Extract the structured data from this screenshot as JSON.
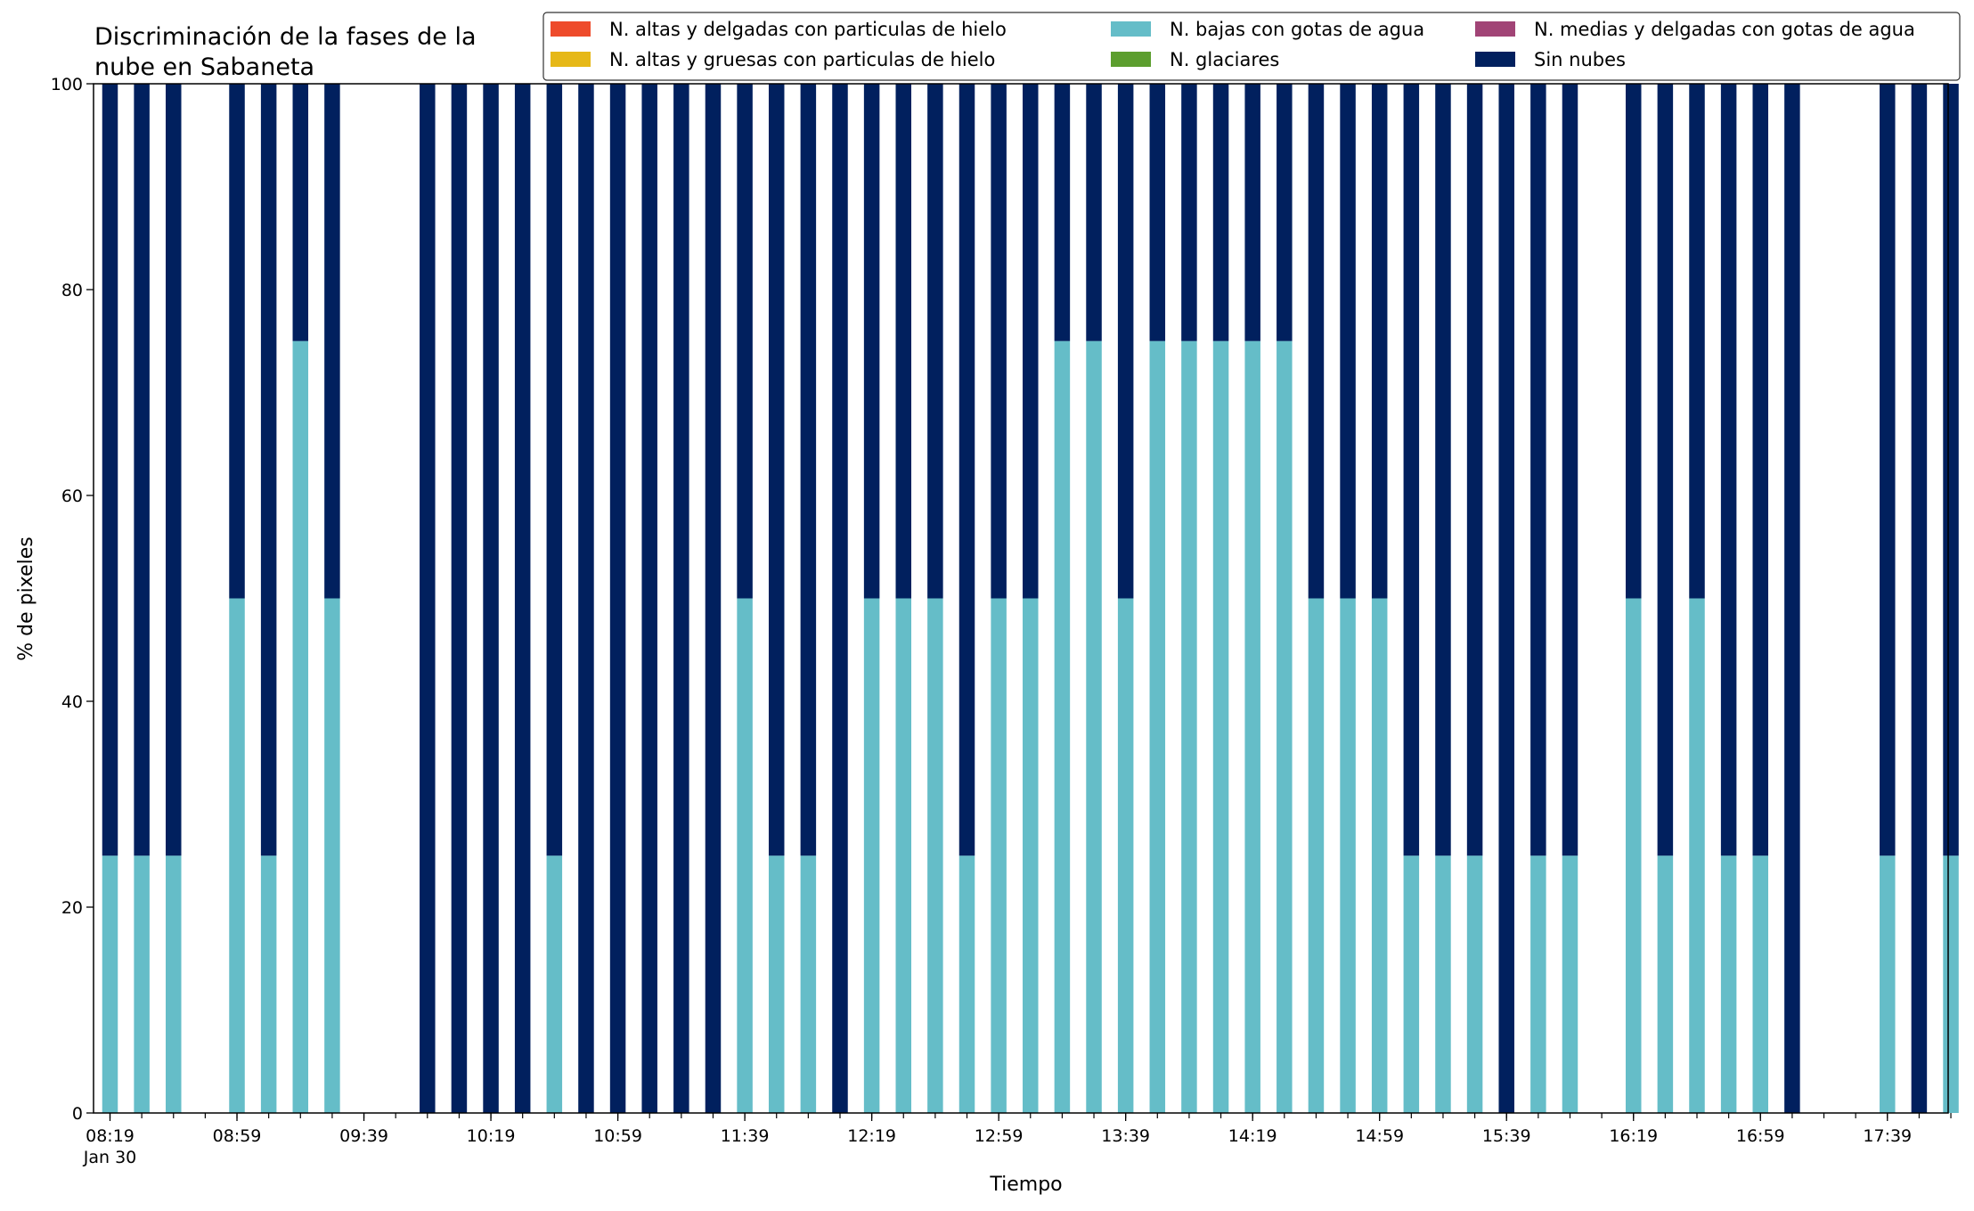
{
  "chart_data": {
    "type": "bar",
    "stacked": true,
    "title_lines": [
      "Discriminación de la fases de la",
      "nube en Sabaneta"
    ],
    "xlabel": "Tiempo",
    "ylabel": "% de pixeles",
    "ylim": [
      0,
      100
    ],
    "yticks": [
      0,
      20,
      40,
      60,
      80,
      100
    ],
    "grid": false,
    "legend_position": "top-right",
    "x_slot_start": "08:19",
    "x_slot_step_minutes": 10,
    "x_slot_count": 59,
    "xtick_labels": [
      "08:19",
      "08:59",
      "09:39",
      "10:19",
      "10:59",
      "11:39",
      "12:19",
      "12:59",
      "13:39",
      "14:19",
      "14:59",
      "15:39",
      "16:19",
      "16:59",
      "17:39"
    ],
    "xtick_sublabel": "Jan 30",
    "categories": [
      "08:19",
      "08:29",
      "08:39",
      "08:49",
      "08:59",
      "09:09",
      "09:19",
      "09:29",
      "09:39",
      "09:49",
      "09:59",
      "10:09",
      "10:19",
      "10:29",
      "10:39",
      "10:49",
      "10:59",
      "11:09",
      "11:19",
      "11:29",
      "11:39",
      "11:49",
      "11:59",
      "12:09",
      "12:19",
      "12:29",
      "12:39",
      "12:49",
      "12:59",
      "13:09",
      "13:19",
      "13:29",
      "13:39",
      "13:49",
      "13:59",
      "14:09",
      "14:19",
      "14:29",
      "14:39",
      "14:49",
      "14:59",
      "15:09",
      "15:19",
      "15:29",
      "15:39",
      "15:49",
      "15:59",
      "16:09",
      "16:19",
      "16:29",
      "16:39",
      "16:49",
      "16:59",
      "17:09",
      "17:19",
      "17:29",
      "17:39",
      "17:49",
      "17:59"
    ],
    "series": [
      {
        "name": "N. altas y delgadas con particulas de hielo",
        "color": "#ee4b2b",
        "values": [
          0,
          0,
          0,
          null,
          0,
          0,
          0,
          0,
          null,
          null,
          0,
          0,
          0,
          0,
          0,
          0,
          0,
          0,
          0,
          0,
          0,
          0,
          0,
          0,
          0,
          0,
          0,
          0,
          0,
          0,
          0,
          0,
          0,
          0,
          0,
          0,
          0,
          0,
          0,
          0,
          0,
          0,
          0,
          0,
          0,
          0,
          0,
          null,
          0,
          0,
          0,
          0,
          0,
          0,
          null,
          null,
          0,
          0,
          0
        ]
      },
      {
        "name": "N. altas y gruesas con particulas de hielo",
        "color": "#e6b817",
        "values": [
          0,
          0,
          0,
          null,
          0,
          0,
          0,
          0,
          null,
          null,
          0,
          0,
          0,
          0,
          0,
          0,
          0,
          0,
          0,
          0,
          0,
          0,
          0,
          0,
          0,
          0,
          0,
          0,
          0,
          0,
          0,
          0,
          0,
          0,
          0,
          0,
          0,
          0,
          0,
          0,
          0,
          0,
          0,
          0,
          0,
          0,
          0,
          null,
          0,
          0,
          0,
          0,
          0,
          0,
          null,
          null,
          0,
          0,
          0
        ]
      },
      {
        "name": "N. bajas con gotas de agua",
        "color": "#65bdc8",
        "values": [
          25,
          25,
          25,
          null,
          50,
          25,
          75,
          50,
          null,
          null,
          0,
          0,
          0,
          0,
          25,
          0,
          0,
          0,
          0,
          0,
          50,
          25,
          25,
          0,
          50,
          50,
          50,
          25,
          50,
          50,
          75,
          75,
          50,
          75,
          75,
          75,
          75,
          75,
          50,
          50,
          50,
          25,
          25,
          25,
          0,
          25,
          25,
          null,
          50,
          25,
          50,
          25,
          25,
          0,
          null,
          null,
          25,
          0,
          25
        ]
      },
      {
        "name": "N. glaciares",
        "color": "#5c9e2e",
        "values": [
          0,
          0,
          0,
          null,
          0,
          0,
          0,
          0,
          null,
          null,
          0,
          0,
          0,
          0,
          0,
          0,
          0,
          0,
          0,
          0,
          0,
          0,
          0,
          0,
          0,
          0,
          0,
          0,
          0,
          0,
          0,
          0,
          0,
          0,
          0,
          0,
          0,
          0,
          0,
          0,
          0,
          0,
          0,
          0,
          0,
          0,
          0,
          null,
          0,
          0,
          0,
          0,
          0,
          0,
          null,
          null,
          0,
          0,
          0
        ]
      },
      {
        "name": "N. medias y delgadas con gotas de agua",
        "color": "#a14476",
        "values": [
          0,
          0,
          0,
          null,
          0,
          0,
          0,
          0,
          null,
          null,
          0,
          0,
          0,
          0,
          0,
          0,
          0,
          0,
          0,
          0,
          0,
          0,
          0,
          0,
          0,
          0,
          0,
          0,
          0,
          0,
          0,
          0,
          0,
          0,
          0,
          0,
          0,
          0,
          0,
          0,
          0,
          0,
          0,
          0,
          0,
          0,
          0,
          null,
          0,
          0,
          0,
          0,
          0,
          0,
          null,
          null,
          0,
          0,
          0
        ]
      },
      {
        "name": "Sin nubes",
        "color": "#01205e",
        "values": [
          75,
          75,
          75,
          null,
          50,
          75,
          25,
          50,
          null,
          null,
          100,
          100,
          100,
          100,
          75,
          100,
          100,
          100,
          100,
          100,
          50,
          75,
          75,
          100,
          50,
          50,
          50,
          75,
          50,
          50,
          25,
          25,
          50,
          25,
          25,
          25,
          25,
          25,
          50,
          50,
          50,
          75,
          75,
          75,
          100,
          75,
          75,
          null,
          50,
          75,
          50,
          75,
          75,
          100,
          null,
          null,
          75,
          100,
          75
        ]
      }
    ]
  }
}
